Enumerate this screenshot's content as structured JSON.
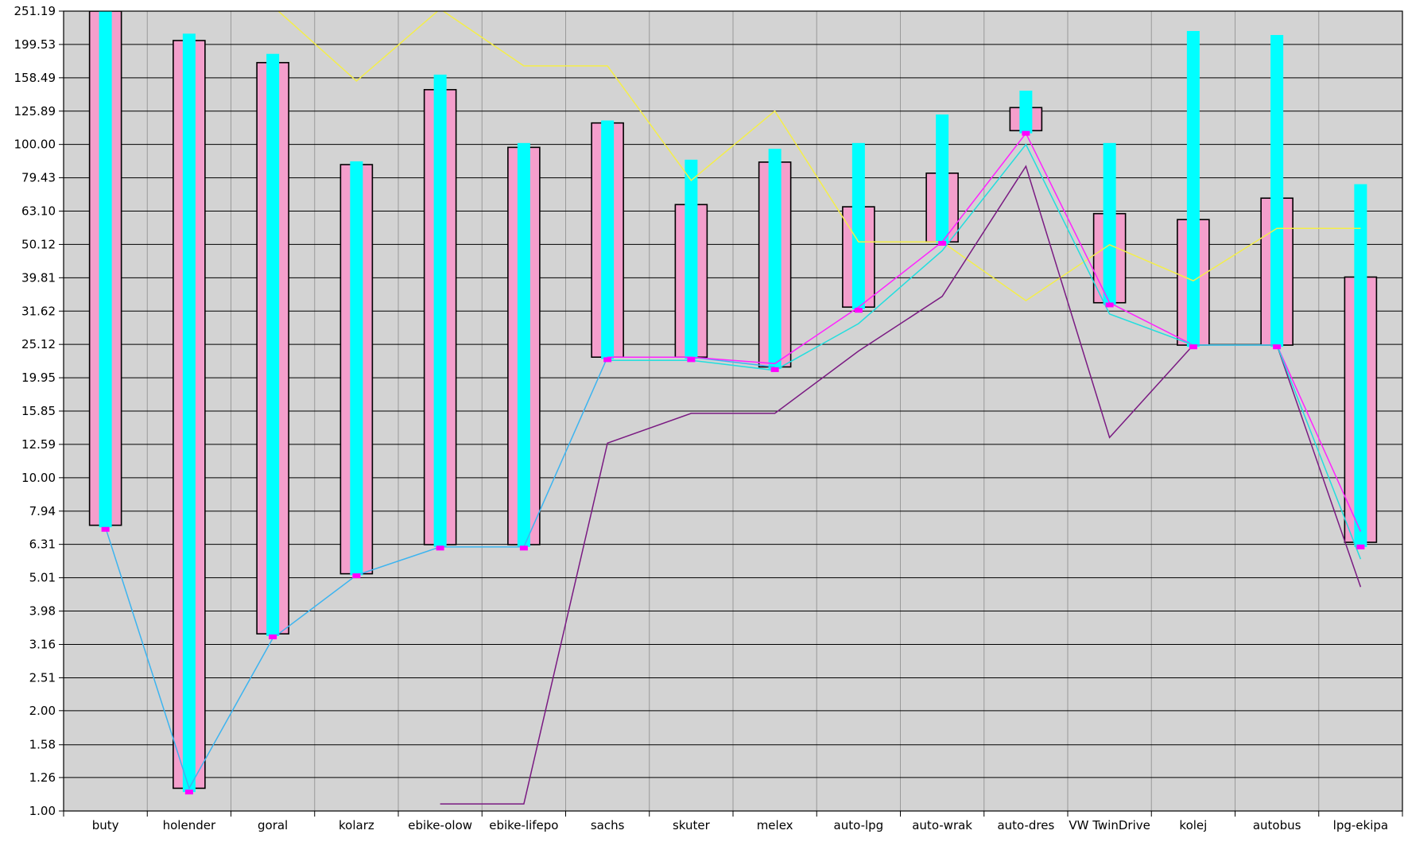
{
  "colors": {
    "plot_bg": "#d3d3d3",
    "grid_h": "#000000",
    "grid_v": "#9a9a9a",
    "range_fill": "#f49fcc",
    "range_stroke": "#000000",
    "inner_fill": "#00ffff",
    "marker": "#ff00ff",
    "line_yellow": "#f4ee4a",
    "line_blue": "#3cb4f0",
    "line_purple": "#7a1a82",
    "line_magenta": "#ff22ff",
    "line_cyan": "#22dede"
  },
  "chart_data": {
    "type": "bar",
    "yscale": "log",
    "ylim": [
      1.0,
      251.19
    ],
    "y_tick_labels": [
      "251.19",
      "199.53",
      "158.49",
      "125.89",
      "100.00",
      "79.43",
      "63.10",
      "50.12",
      "39.81",
      "31.62",
      "25.12",
      "19.95",
      "15.85",
      "12.59",
      "10.00",
      "7.94",
      "6.31",
      "5.01",
      "3.98",
      "3.16",
      "2.51",
      "2.00",
      "1.58",
      "1.26",
      "1.00"
    ],
    "categories": [
      "buty",
      "holender",
      "goral",
      "kolarz",
      "ebike-olow",
      "ebike-lifepo",
      "sachs",
      "skuter",
      "melex",
      "auto-lpg",
      "auto-wrak",
      "auto-dres",
      "VW TwinDrive",
      "kolej",
      "autobus",
      "lpg-ekipa"
    ],
    "range_low": [
      7.2,
      1.17,
      3.4,
      5.15,
      6.3,
      6.3,
      23.0,
      23.0,
      21.5,
      32.5,
      51.0,
      110.0,
      33.5,
      25.0,
      25.0,
      6.4
    ],
    "range_high": [
      251.19,
      205.0,
      176.0,
      87.0,
      146.0,
      98.0,
      116.0,
      66.0,
      88.5,
      65.0,
      82.0,
      129.0,
      62.0,
      59.5,
      69.0,
      40.0
    ],
    "inner_low": [
      7.1,
      1.14,
      3.35,
      5.1,
      6.2,
      6.2,
      22.7,
      22.7,
      21.2,
      32.0,
      50.5,
      108.0,
      33.0,
      24.7,
      24.7,
      6.2
    ],
    "inner_high": [
      251.19,
      215.0,
      187.0,
      89.0,
      162.0,
      101.0,
      118.0,
      90.0,
      97.0,
      101.0,
      123.0,
      145.0,
      101.0,
      219.0,
      213.0,
      76.0
    ],
    "marker": [
      7.0,
      1.14,
      3.33,
      5.08,
      6.15,
      6.15,
      22.6,
      22.6,
      21.1,
      31.8,
      50.5,
      108.0,
      33.0,
      24.7,
      24.7,
      6.2
    ],
    "series": [
      {
        "key": "yellow",
        "color": "line_yellow",
        "values": [
          null,
          null,
          260,
          155,
          255,
          172,
          172,
          78,
          126,
          51,
          51,
          34,
          50,
          39,
          56,
          56
        ]
      },
      {
        "key": "blue",
        "color": "line_blue",
        "values": [
          7.1,
          1.17,
          3.3,
          5.1,
          6.2,
          6.2,
          23.0,
          23.0,
          21.5,
          null,
          null,
          null,
          null,
          null,
          null,
          null
        ]
      },
      {
        "key": "purple",
        "color": "line_purple",
        "values": [
          null,
          null,
          null,
          null,
          1.05,
          1.05,
          12.7,
          15.6,
          15.6,
          24.0,
          35.0,
          86.0,
          13.2,
          25.0,
          25.0,
          4.7
        ]
      },
      {
        "key": "magenta",
        "color": "line_magenta",
        "values": [
          null,
          null,
          null,
          null,
          null,
          null,
          23.0,
          23.0,
          22.0,
          32.5,
          51.0,
          108.0,
          33.5,
          25.0,
          25.0,
          6.9
        ]
      },
      {
        "key": "cyan",
        "color": "line_cyan",
        "values": [
          null,
          null,
          null,
          null,
          null,
          null,
          22.5,
          22.5,
          21.0,
          29.0,
          48.0,
          100.0,
          31.0,
          25.0,
          25.0,
          5.7
        ]
      }
    ],
    "grid": true,
    "title": "",
    "xlabel": "",
    "ylabel": ""
  }
}
